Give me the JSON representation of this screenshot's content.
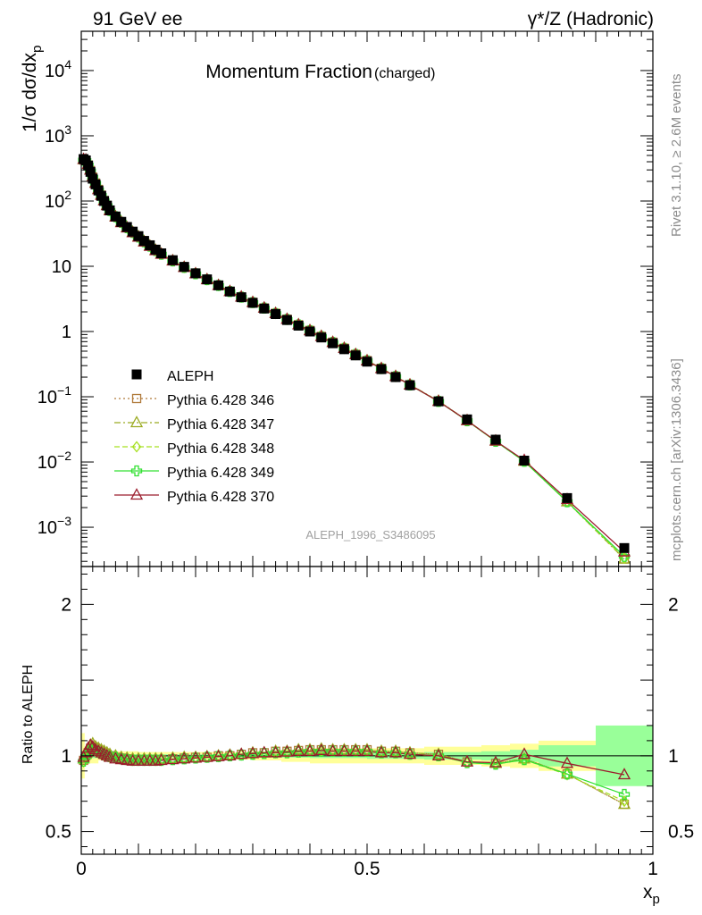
{
  "header": {
    "left": "91 GeV ee",
    "right": "γ*/Z (Hadronic)"
  },
  "side_text": {
    "rivet": "Rivet 3.1.10, ≥ 2.6M events",
    "mcplots": "mcplots.cern.ch [arXiv:1306.3436]"
  },
  "chart_data": [
    {
      "type": "line",
      "title": "Momentum Fraction",
      "subtitle": "(charged)",
      "ylabel": "1/σ dσ/dx_p",
      "xlabel": "",
      "yscale": "log",
      "xlim": [
        0,
        1
      ],
      "ylim": [
        0.00025,
        40000
      ],
      "y_ticks": [
        {
          "value": 10000,
          "base": "10",
          "exp": "4"
        },
        {
          "value": 1000,
          "base": "10",
          "exp": "3"
        },
        {
          "value": 100,
          "base": "10",
          "exp": "2"
        },
        {
          "value": 10,
          "base": "10",
          "exp": ""
        },
        {
          "value": 1,
          "base": "1",
          "exp": ""
        },
        {
          "value": 0.1,
          "base": "10",
          "exp": "−1"
        },
        {
          "value": 0.01,
          "base": "10",
          "exp": "−2"
        },
        {
          "value": 0.001,
          "base": "10",
          "exp": "−3"
        }
      ],
      "watermark": "ALEPH_1996_S3486095",
      "x": [
        0.004,
        0.008,
        0.012,
        0.016,
        0.02,
        0.025,
        0.03,
        0.035,
        0.04,
        0.045,
        0.05,
        0.06,
        0.07,
        0.08,
        0.09,
        0.1,
        0.11,
        0.12,
        0.13,
        0.14,
        0.16,
        0.18,
        0.2,
        0.22,
        0.24,
        0.26,
        0.28,
        0.3,
        0.32,
        0.34,
        0.36,
        0.38,
        0.4,
        0.42,
        0.44,
        0.46,
        0.48,
        0.5,
        0.525,
        0.55,
        0.575,
        0.625,
        0.675,
        0.725,
        0.775,
        0.85,
        0.95
      ],
      "series": [
        {
          "name": "ALEPH",
          "marker": "square-filled",
          "color": "#000000",
          "values": [
            440,
            420,
            350,
            280,
            220,
            180,
            145,
            120,
            100,
            85,
            72,
            58,
            48,
            40,
            34,
            29,
            24.5,
            21,
            18,
            15.8,
            12.4,
            9.8,
            7.8,
            6.3,
            5.1,
            4.1,
            3.35,
            2.75,
            2.25,
            1.85,
            1.5,
            1.23,
            1.0,
            0.81,
            0.66,
            0.535,
            0.43,
            0.345,
            0.265,
            0.2,
            0.15,
            0.085,
            0.045,
            0.022,
            0.0105,
            0.0028,
            0.00048
          ]
        },
        {
          "name": "Pythia 6.428 346",
          "marker": "square-open",
          "color": "#b07a3a",
          "dash": "2,3",
          "ratio": [
            0.97,
            1.0,
            1.02,
            1.05,
            1.06,
            1.05,
            1.04,
            1.03,
            1.02,
            1.01,
            1.0,
            0.99,
            0.985,
            0.98,
            0.975,
            0.975,
            0.975,
            0.975,
            0.975,
            0.975,
            0.98,
            0.985,
            0.99,
            0.99,
            1.0,
            1.0,
            1.01,
            1.02,
            1.02,
            1.03,
            1.03,
            1.035,
            1.04,
            1.04,
            1.04,
            1.04,
            1.04,
            1.04,
            1.03,
            1.03,
            1.02,
            1.01,
            0.96,
            0.95,
            0.98,
            0.88,
            0.68
          ]
        },
        {
          "name": "Pythia 6.428 347",
          "marker": "triangle-open",
          "color": "#9aaa20",
          "dash": "7,3,2,3",
          "ratio": [
            0.98,
            1.01,
            1.04,
            1.07,
            1.08,
            1.06,
            1.05,
            1.04,
            1.03,
            1.02,
            1.01,
            1.0,
            0.99,
            0.985,
            0.98,
            0.98,
            0.98,
            0.98,
            0.98,
            0.98,
            0.985,
            0.99,
            0.99,
            0.995,
            1.0,
            1.005,
            1.01,
            1.02,
            1.02,
            1.03,
            1.03,
            1.04,
            1.04,
            1.045,
            1.04,
            1.04,
            1.04,
            1.04,
            1.03,
            1.03,
            1.02,
            1.01,
            0.96,
            0.95,
            0.98,
            0.88,
            0.68
          ]
        },
        {
          "name": "Pythia 6.428 348",
          "marker": "diamond-open",
          "color": "#a6e020",
          "dash": "6,3",
          "ratio": [
            0.96,
            0.99,
            1.01,
            1.03,
            1.04,
            1.03,
            1.02,
            1.01,
            1.0,
            1.0,
            0.99,
            0.985,
            0.98,
            0.975,
            0.97,
            0.97,
            0.97,
            0.97,
            0.97,
            0.97,
            0.975,
            0.98,
            0.985,
            0.99,
            0.995,
            1.0,
            1.005,
            1.01,
            1.02,
            1.02,
            1.02,
            1.03,
            1.03,
            1.03,
            1.03,
            1.03,
            1.03,
            1.03,
            1.02,
            1.02,
            1.01,
            1.0,
            0.955,
            0.945,
            0.975,
            0.875,
            0.7
          ]
        },
        {
          "name": "Pythia 6.428 349",
          "marker": "cross-open",
          "color": "#33e033",
          "dash": "",
          "ratio": [
            0.965,
            0.995,
            1.015,
            1.035,
            1.045,
            1.035,
            1.025,
            1.015,
            1.005,
            1.0,
            0.995,
            0.99,
            0.98,
            0.975,
            0.97,
            0.97,
            0.97,
            0.97,
            0.97,
            0.97,
            0.975,
            0.98,
            0.985,
            0.99,
            0.995,
            1.0,
            1.005,
            1.01,
            1.015,
            1.02,
            1.02,
            1.025,
            1.03,
            1.03,
            1.03,
            1.03,
            1.03,
            1.03,
            1.02,
            1.02,
            1.01,
            1.0,
            0.955,
            0.945,
            0.975,
            0.88,
            0.745
          ]
        },
        {
          "name": "Pythia 6.428 370",
          "marker": "triangle-open",
          "color": "#9b1c2c",
          "dash": "",
          "ratio": [
            0.99,
            1.02,
            1.05,
            1.07,
            1.06,
            1.04,
            1.03,
            1.02,
            1.01,
            1.0,
            0.99,
            0.98,
            0.975,
            0.97,
            0.965,
            0.965,
            0.965,
            0.965,
            0.965,
            0.97,
            0.975,
            0.98,
            0.985,
            0.99,
            0.995,
            1.0,
            1.01,
            1.015,
            1.02,
            1.02,
            1.025,
            1.03,
            1.03,
            1.035,
            1.03,
            1.03,
            1.03,
            1.03,
            1.02,
            1.02,
            1.01,
            1.0,
            0.96,
            0.955,
            1.01,
            0.95,
            0.875
          ]
        }
      ]
    },
    {
      "type": "line",
      "title": "",
      "ylabel": "Ratio to ALEPH",
      "xlabel": "x_p",
      "xlim": [
        0,
        1
      ],
      "ylim": [
        0.35,
        2.25
      ],
      "x_ticks": [
        {
          "value": 0,
          "label": "0"
        },
        {
          "value": 0.5,
          "label": "0.5"
        },
        {
          "value": 1,
          "label": "1"
        }
      ],
      "y_ticks": [
        {
          "value": 0.5,
          "label": "0.5"
        },
        {
          "value": 1,
          "label": "1"
        },
        {
          "value": 2,
          "label": "2"
        }
      ],
      "uncertainty_bands": {
        "edges": [
          0,
          0.006,
          0.03,
          0.1,
          0.2,
          0.3,
          0.35,
          0.4,
          0.5,
          0.6,
          0.7,
          0.75,
          0.8,
          0.9,
          1.0
        ],
        "stat": [
          0.02,
          0.015,
          0.01,
          0.01,
          0.01,
          0.01,
          0.012,
          0.015,
          0.02,
          0.025,
          0.03,
          0.04,
          0.07,
          0.2
        ],
        "total": [
          0.15,
          0.05,
          0.03,
          0.025,
          0.025,
          0.03,
          0.04,
          0.05,
          0.05,
          0.06,
          0.07,
          0.08,
          0.1,
          0.18
        ],
        "inner_color": "#99ff99",
        "outer_color": "#ffff99"
      }
    }
  ]
}
